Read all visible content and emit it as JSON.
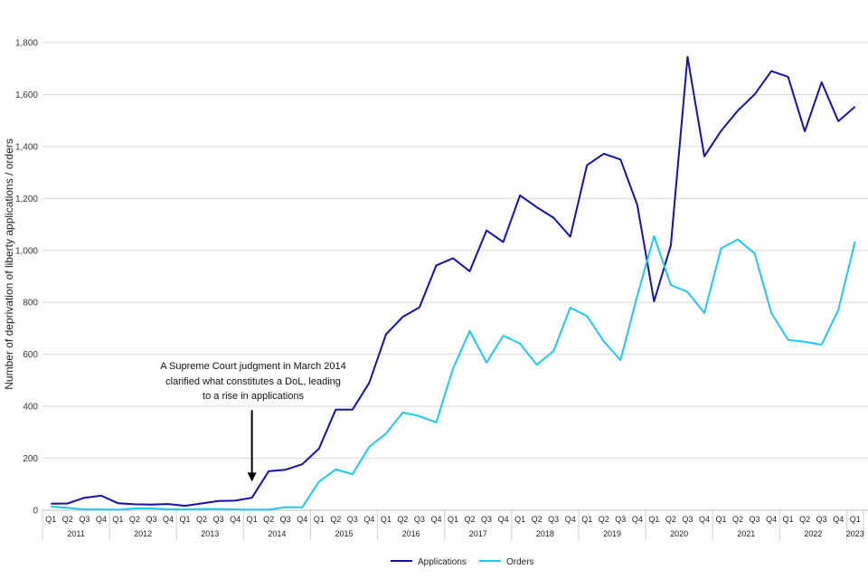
{
  "chart_data": {
    "type": "line",
    "title": "",
    "ylabel": "Number of deprivation of liberty applications / orders",
    "xlabel": "",
    "ylim": [
      0,
      1800
    ],
    "yticks": [
      0,
      200,
      400,
      600,
      800,
      1000,
      1200,
      1400,
      1600,
      1800
    ],
    "ytick_labels": [
      "0",
      "200",
      "400",
      "600",
      "800",
      "1,000",
      "1,200",
      "1,400",
      "1,600",
      "1,800"
    ],
    "grid": true,
    "legend_position": "bottom",
    "quarter_labels": [
      "Q1",
      "Q2",
      "Q3",
      "Q4",
      "Q1",
      "Q2",
      "Q3",
      "Q4",
      "Q1",
      "Q2",
      "Q3",
      "Q4",
      "Q1",
      "Q2",
      "Q3",
      "Q4",
      "Q1",
      "Q2",
      "Q3",
      "Q4",
      "Q1",
      "Q2",
      "Q3",
      "Q4",
      "Q1",
      "Q2",
      "Q3",
      "Q4",
      "Q1",
      "Q2",
      "Q3",
      "Q4",
      "Q1",
      "Q2",
      "Q3",
      "Q4",
      "Q1",
      "Q2",
      "Q3",
      "Q4",
      "Q1",
      "Q2",
      "Q3",
      "Q4",
      "Q1",
      "Q2",
      "Q3",
      "Q4",
      "Q1"
    ],
    "years": [
      "2011",
      "2012",
      "2013",
      "2014",
      "2015",
      "2016",
      "2017",
      "2018",
      "2019",
      "2020",
      "2021",
      "2022",
      "2023"
    ],
    "series": [
      {
        "name": "Applications",
        "color": "#1212aa",
        "values": [
          25,
          26,
          48,
          56,
          27,
          23,
          22,
          24,
          17,
          26,
          36,
          37,
          48,
          150,
          156,
          177,
          237,
          387,
          387,
          490,
          677,
          744,
          781,
          942,
          970,
          920,
          1077,
          1032,
          1212,
          1166,
          1126,
          1053,
          1328,
          1372,
          1350,
          1175,
          804,
          1019,
          1745,
          1362,
          1460,
          1538,
          1600,
          1690,
          1668,
          1458,
          1647,
          1497,
          1553
        ]
      },
      {
        "name": "Orders",
        "color": "#1ec8ee",
        "values": [
          14,
          9,
          3,
          3,
          2,
          7,
          7,
          4,
          3,
          5,
          5,
          3,
          2,
          2,
          12,
          11,
          110,
          157,
          139,
          244,
          295,
          376,
          362,
          338,
          545,
          690,
          568,
          672,
          641,
          560,
          612,
          780,
          747,
          650,
          578,
          825,
          1055,
          867,
          840,
          759,
          1008,
          1042,
          988,
          759,
          656,
          648,
          637,
          771,
          1035
        ]
      }
    ],
    "annotation": {
      "lines": [
        "A Supreme Court judgment in March 2014",
        "clarified what constitutes a DoL, leading",
        "to a rise in applications"
      ],
      "at_index": 12,
      "arrow_from_value": 385,
      "arrow_to_value": 110
    }
  }
}
